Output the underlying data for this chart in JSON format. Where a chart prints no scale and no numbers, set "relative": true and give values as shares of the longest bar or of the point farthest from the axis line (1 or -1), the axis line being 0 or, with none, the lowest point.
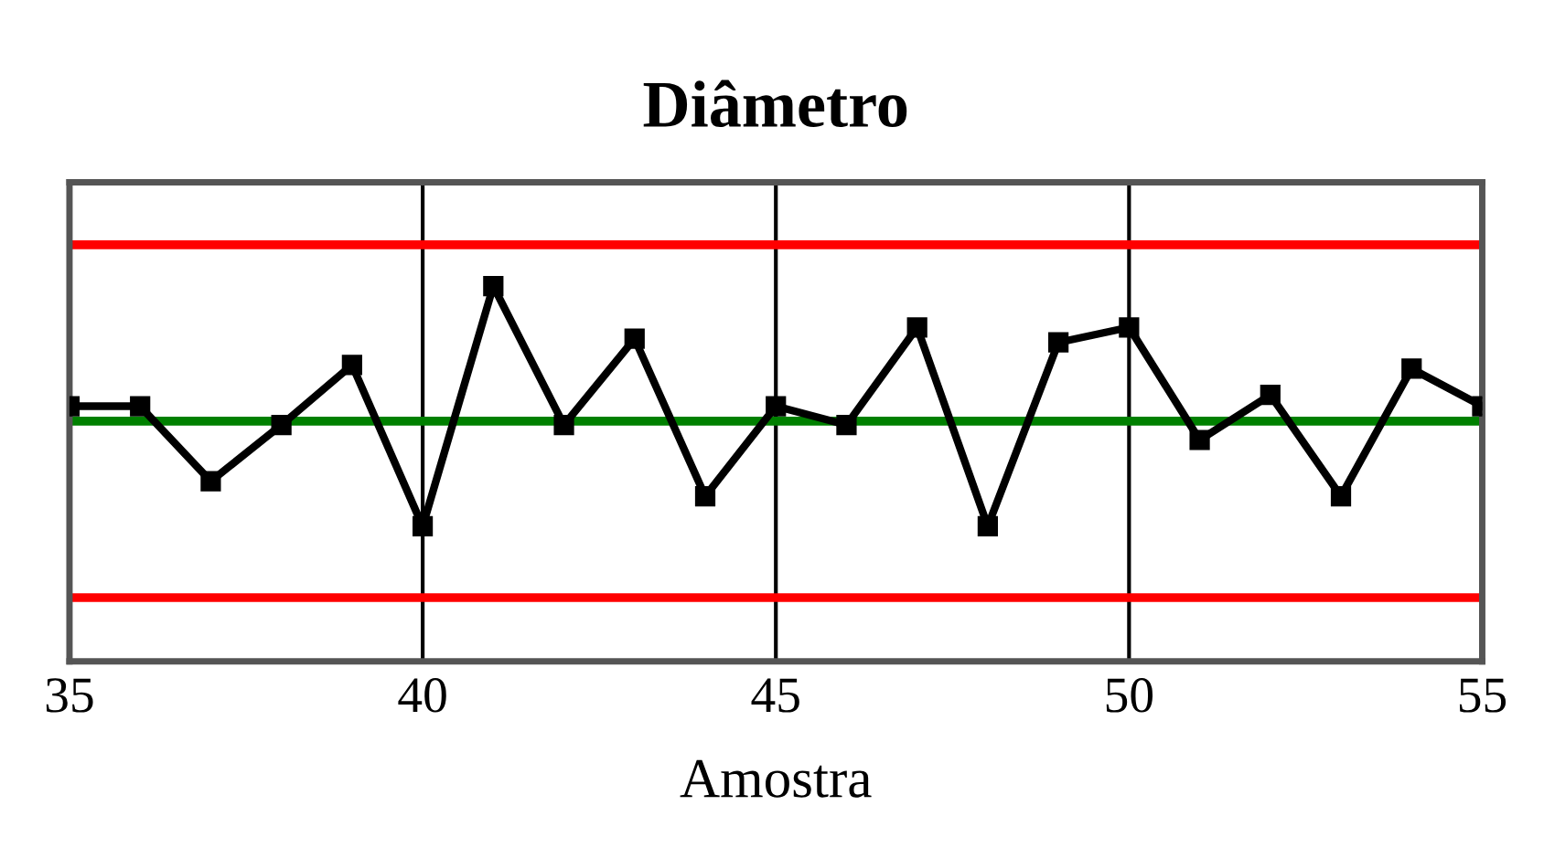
{
  "chart_data": {
    "type": "line",
    "title": "Diâmetro",
    "xlabel": "Amostra",
    "relative": true,
    "x": [
      35,
      36,
      37,
      38,
      39,
      40,
      41,
      42,
      43,
      44,
      45,
      46,
      47,
      48,
      49,
      50,
      51,
      52,
      53,
      54,
      55
    ],
    "series": [
      {
        "color": "#000000",
        "values": [
          0.68,
          0.68,
          0.48,
          0.63,
          0.79,
          0.36,
          1,
          0.63,
          0.86,
          0.44,
          0.68,
          0.63,
          0.89,
          0.36,
          0.85,
          0.89,
          0.59,
          0.71,
          0.44,
          0.78,
          0.68
        ]
      }
    ],
    "xlim": [
      35,
      55
    ],
    "xticks": [
      35,
      40,
      45,
      50,
      55
    ],
    "ref_lines": [
      {
        "axis": "y",
        "value": 1.11,
        "color": "#ff0000"
      },
      {
        "axis": "y",
        "value": 0.64,
        "color": "#008000"
      },
      {
        "axis": "y",
        "value": 0.17,
        "color": "#ff0000"
      }
    ],
    "grid": "x",
    "marker": "square",
    "line_style": "solid",
    "legend": false
  }
}
